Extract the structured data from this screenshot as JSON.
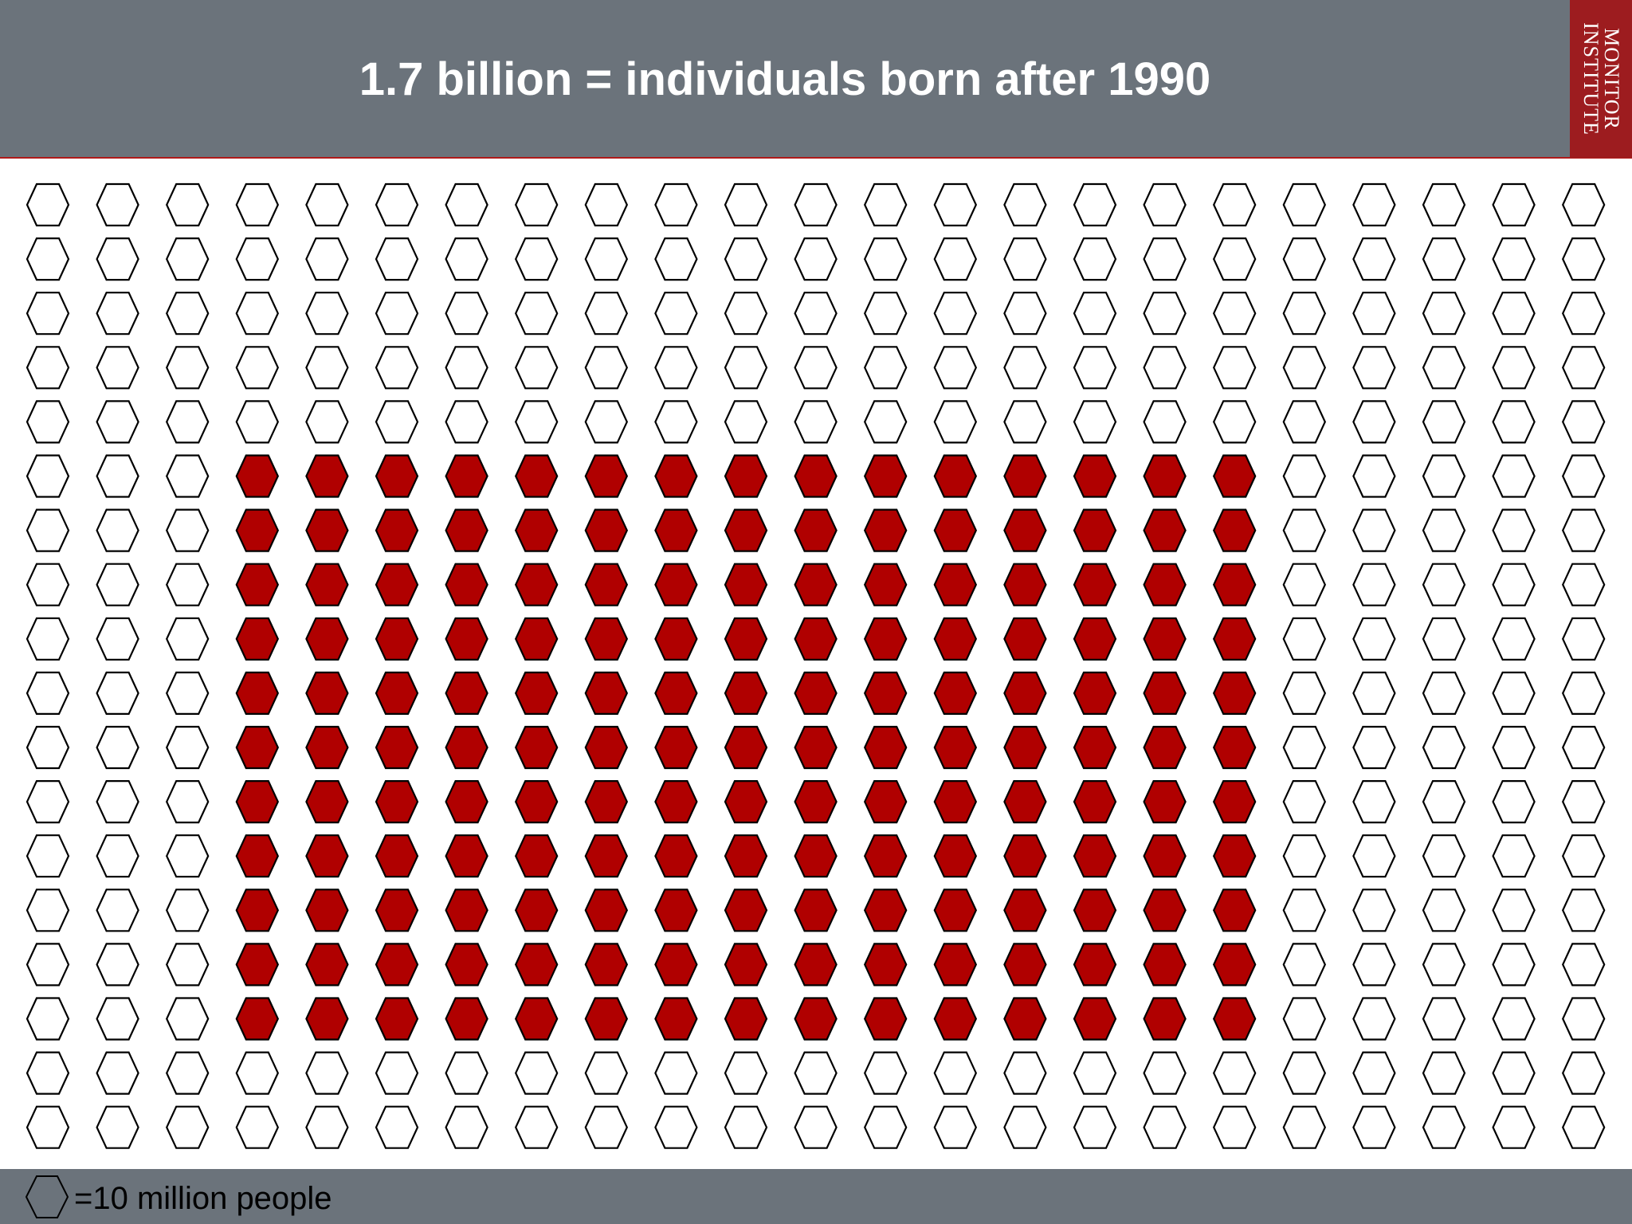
{
  "slide": {
    "title": "1.7 billion = individuals born after 1990",
    "logo_line1": "MONITOR",
    "logo_line2": "INSTITUTE",
    "legend_label": "=10 million people"
  },
  "colors": {
    "header_bg": "#6b737b",
    "accent": "#b00000",
    "logo_bg": "#9d1c1f",
    "empty_fill": "#ffffff",
    "outline": "#000000"
  },
  "icon_names": {
    "unit": "hexagon-icon"
  },
  "chart_data": {
    "type": "pictograph",
    "unit_value": 10000000,
    "unit_label": "=10 million people",
    "columns": 23,
    "rows": 18,
    "highlighted_columns": [
      3,
      17
    ],
    "highlighted_rows": [
      5,
      15
    ],
    "highlighted_count": 165,
    "total_count": 414,
    "highlight_color": "#b00000"
  }
}
